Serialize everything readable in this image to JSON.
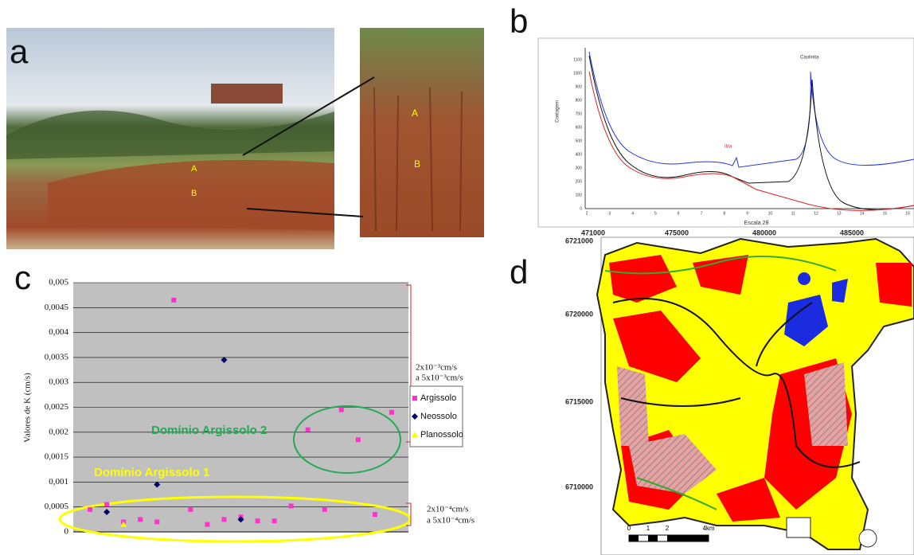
{
  "panel_labels": [
    "a",
    "b",
    "c",
    "d"
  ],
  "photo_labels": {
    "main": [
      "A",
      "B"
    ],
    "inset": [
      "A",
      "B"
    ]
  },
  "xrd": {
    "y_label": "Contagem",
    "x_label": "Escala 2θ",
    "peaks": [
      "Caolinita",
      "Ilita"
    ],
    "yticks": [
      "1100",
      "1000",
      "900",
      "800",
      "700",
      "600",
      "500",
      "400",
      "300",
      "200",
      "100",
      "0"
    ],
    "xticks": [
      "2",
      "3",
      "4",
      "5",
      "6",
      "7",
      "8",
      "9",
      "10",
      "11",
      "12",
      "13",
      "14",
      "15",
      "16"
    ]
  },
  "chart_data": {
    "type": "scatter",
    "y_label": "Valores de K (cm/s)",
    "xlim": [
      0,
      20
    ],
    "ylim": [
      0,
      0.005
    ],
    "yticks": [
      0,
      {
        "value": 0.0005,
        "label": "0,0005"
      },
      {
        "value": 0.001,
        "label": "0,001"
      },
      {
        "value": 0.0015,
        "label": "0,0015"
      },
      {
        "value": 0.002,
        "label": "0,002"
      },
      {
        "value": 0.0025,
        "label": "0,0025"
      },
      {
        "value": 0.003,
        "label": "0,003"
      },
      {
        "value": 0.0035,
        "label": "0,0035"
      },
      {
        "value": 0.004,
        "label": "0,004"
      },
      {
        "value": 0.0045,
        "label": "0,0045"
      },
      {
        "value": 0.005,
        "label": "0,005"
      }
    ],
    "grid": true,
    "series": [
      {
        "name": "Argissolo",
        "color": "#ff33cc",
        "marker": "square",
        "x": [
          1,
          2,
          3,
          4,
          5,
          6,
          7,
          8,
          9,
          10,
          11,
          12,
          13,
          14,
          15,
          16,
          17,
          18,
          19
        ],
        "values": [
          0.00045,
          0.00055,
          0.0002,
          0.00025,
          0.0002,
          0.00465,
          0.00045,
          0.00015,
          0.00025,
          0.0003,
          0.00022,
          0.00022,
          0.00052,
          0.00205,
          0.00045,
          0.00245,
          0.00185,
          0.00035,
          0.0024
        ]
      },
      {
        "name": "Neossolo",
        "color": "#000066",
        "marker": "diamond",
        "x": [
          2,
          5,
          9,
          10
        ],
        "values": [
          0.0004,
          0.00095,
          0.00345,
          0.00025
        ]
      },
      {
        "name": "Planossolo",
        "color": "#ffff00",
        "marker": "triangle",
        "x": [
          3
        ],
        "values": [
          0.00015
        ]
      }
    ],
    "annotations": [
      "Domínio Argissolo 2",
      "Domínio Argissolo 1"
    ],
    "range_labels": [
      [
        "2x10⁻³cm/s",
        "a 5x10⁻³cm/s"
      ],
      [
        "2x10⁻⁴cm/s",
        "a 5x10⁻⁴cm/s"
      ]
    ]
  },
  "map": {
    "x_ticks": [
      "471000",
      "475000",
      "480000",
      "485000"
    ],
    "y_ticks": [
      "6721000",
      "6720000",
      "6715000",
      "6710000"
    ],
    "scale_labels": [
      "0",
      "1",
      "2",
      "4km"
    ]
  }
}
